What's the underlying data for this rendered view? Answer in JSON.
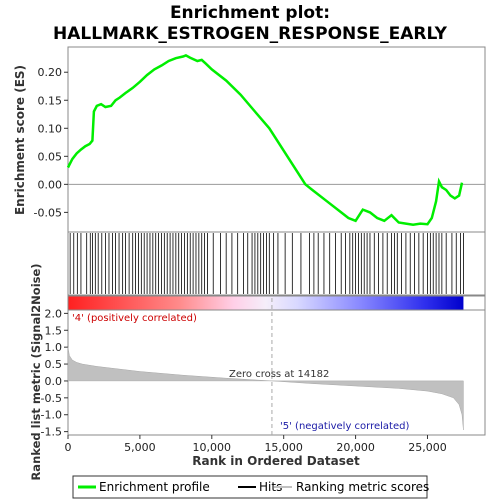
{
  "chart_data": {
    "type": "line",
    "title_line1": "Enrichment plot:",
    "title_line2": "HALLMARK_ESTROGEN_RESPONSE_EARLY",
    "top_panel": {
      "ylabel": "Enrichment score (ES)",
      "ylim": [
        -0.085,
        0.245
      ],
      "yticks": [
        -0.05,
        0.0,
        0.05,
        0.1,
        0.15,
        0.2
      ],
      "ytick_labels": [
        "-0.05",
        "0.00",
        "0.05",
        "0.10",
        "0.15",
        "0.20"
      ],
      "series": [
        {
          "name": "Enrichment profile",
          "color": "#00ee00",
          "x": [
            0,
            300,
            600,
            900,
            1200,
            1500,
            1700,
            1800,
            2000,
            2300,
            2600,
            3000,
            3300,
            3600,
            4000,
            4500,
            5000,
            5500,
            6000,
            6500,
            7000,
            7500,
            8000,
            8200,
            8500,
            9000,
            9300,
            9600,
            10000,
            11000,
            12000,
            13000,
            14000,
            15000,
            16000,
            16500,
            17000,
            18000,
            19000,
            19500,
            20000,
            20500,
            21000,
            21500,
            22000,
            22500,
            23000,
            23500,
            24000,
            24500,
            25000,
            25300,
            25600,
            25800,
            26000,
            26300,
            26600,
            26900,
            27200,
            27400
          ],
          "y": [
            0.03,
            0.045,
            0.055,
            0.062,
            0.068,
            0.072,
            0.078,
            0.13,
            0.14,
            0.143,
            0.138,
            0.14,
            0.15,
            0.155,
            0.163,
            0.172,
            0.183,
            0.195,
            0.205,
            0.212,
            0.22,
            0.225,
            0.228,
            0.23,
            0.226,
            0.22,
            0.222,
            0.215,
            0.205,
            0.185,
            0.16,
            0.13,
            0.1,
            0.06,
            0.02,
            0.0,
            -0.01,
            -0.03,
            -0.05,
            -0.06,
            -0.065,
            -0.045,
            -0.05,
            -0.06,
            -0.065,
            -0.055,
            -0.068,
            -0.07,
            -0.072,
            -0.07,
            -0.071,
            -0.06,
            -0.03,
            0.005,
            -0.005,
            -0.01,
            -0.02,
            -0.025,
            -0.02,
            0.003
          ]
        }
      ]
    },
    "hits_panel": {
      "hit_positions": [
        150,
        400,
        650,
        900,
        1300,
        1550,
        1700,
        1900,
        2100,
        2350,
        2600,
        2850,
        3100,
        3300,
        3550,
        3800,
        4000,
        4250,
        4500,
        4700,
        4900,
        5100,
        5300,
        5500,
        5700,
        5900,
        6100,
        6300,
        6500,
        6700,
        6900,
        7100,
        7300,
        7500,
        7700,
        7900,
        8100,
        8300,
        8500,
        8700,
        8900,
        9100,
        9300,
        9500,
        9700,
        10100,
        10600,
        11000,
        11400,
        11800,
        12200,
        12500,
        12800,
        13000,
        13200,
        13400,
        13600,
        13800,
        14000,
        14300,
        14600,
        15100,
        15600,
        16200,
        16800,
        17100,
        17400,
        17800,
        18200,
        18600,
        19000,
        19300,
        19600,
        19800,
        20000,
        20200,
        20400,
        20600,
        20800,
        21000,
        21300,
        21600,
        21900,
        22200,
        22500,
        22700,
        22900,
        23200,
        23500,
        23800,
        24100,
        24400,
        24700,
        25000,
        25200,
        25400,
        25600,
        25800,
        26000,
        26300,
        26700,
        27000,
        27300,
        27500
      ]
    },
    "ranked_panel": {
      "ylabel": "Ranked list metric (Signal2Noise)",
      "ylim": [
        -1.6,
        2.1
      ],
      "yticks": [
        -1.5,
        -1.0,
        -0.5,
        0.0,
        0.5,
        1.0,
        1.5,
        2.0
      ],
      "ytick_labels": [
        "-1.5",
        "-1.0",
        "-0.5",
        "0.0",
        "0.5",
        "1.0",
        "1.5",
        "2.0"
      ],
      "series": [
        {
          "name": "Ranking metric scores",
          "color": "#c0c0c0",
          "x": [
            0,
            100,
            300,
            600,
            1000,
            2000,
            3000,
            5000,
            8000,
            11000,
            14182,
            17000,
            20000,
            23000,
            25000,
            26000,
            26800,
            27200,
            27400,
            27500
          ],
          "y": [
            1.0,
            0.75,
            0.62,
            0.55,
            0.5,
            0.43,
            0.38,
            0.28,
            0.17,
            0.08,
            0.0,
            -0.08,
            -0.15,
            -0.22,
            -0.3,
            -0.38,
            -0.5,
            -0.7,
            -1.0,
            -1.45
          ]
        }
      ],
      "zero_cross_label": "Zero cross at 14182",
      "zero_cross": 14182,
      "pos_label": "'4' (positively correlated)",
      "neg_label": "'5' (negatively correlated)"
    },
    "x_axis": {
      "xlabel": "Rank in Ordered Dataset",
      "xlim": [
        0,
        29000
      ],
      "xticks": [
        0,
        5000,
        10000,
        15000,
        20000,
        25000
      ],
      "xtick_labels": [
        "0",
        "5,000",
        "10,000",
        "15,000",
        "20,000",
        "25,000"
      ],
      "n_genes": 27500
    },
    "legend": {
      "placement": "bottom",
      "items": [
        {
          "label": "Enrichment profile",
          "color": "#00ee00"
        },
        {
          "label": "Hits",
          "color": "#000000"
        },
        {
          "label": "Ranking metric scores",
          "color": "#c0c0c0"
        }
      ]
    },
    "colors": {
      "positive": "#ff0000",
      "negative": "#0000ff",
      "neutral": "#ffffff"
    }
  }
}
